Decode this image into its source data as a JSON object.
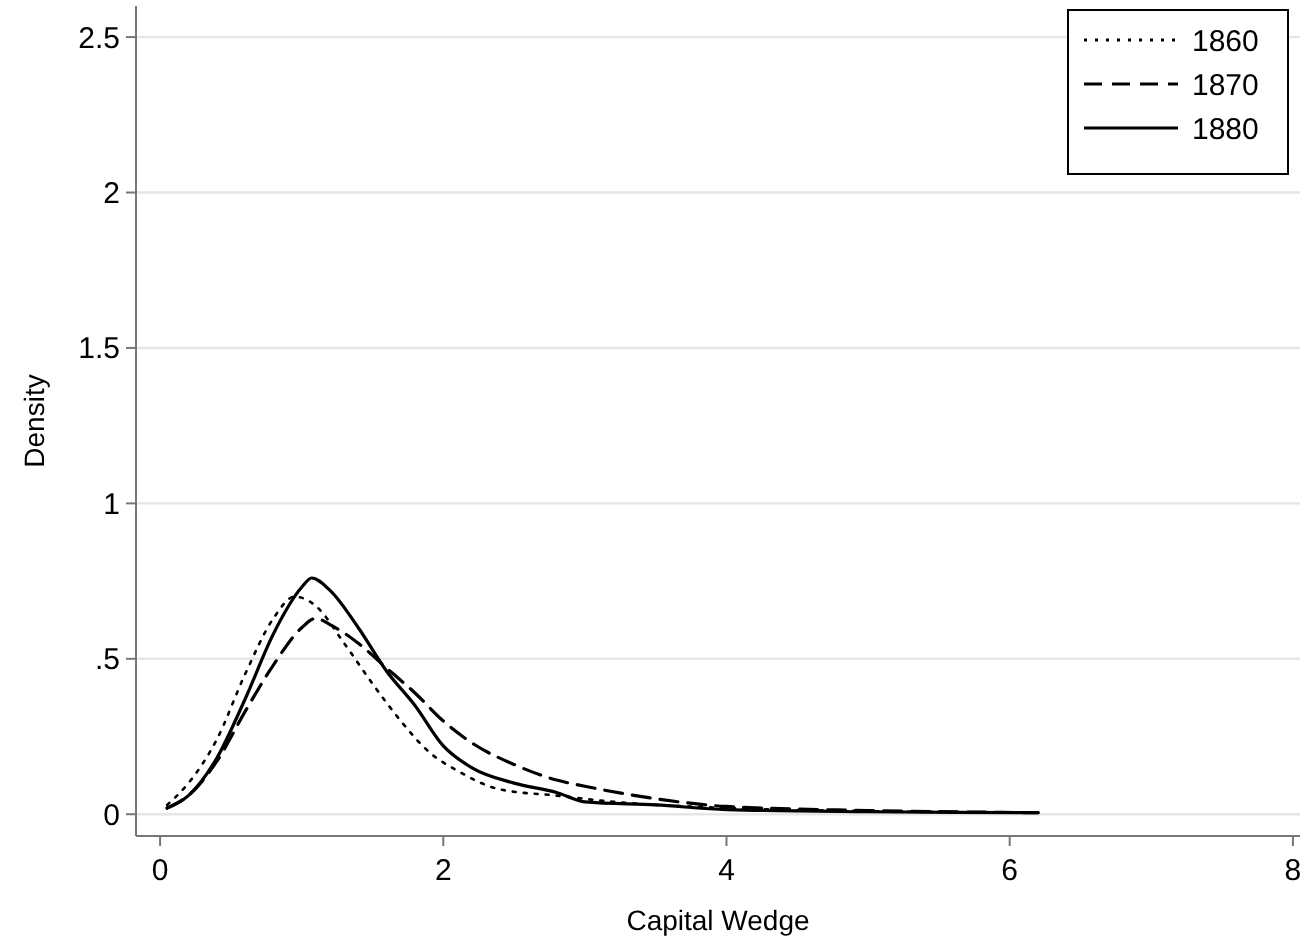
{
  "chart_data": {
    "type": "line",
    "xlabel": "Capital Wedge",
    "ylabel": "Density",
    "xlim": [
      -0.17,
      8.05
    ],
    "ylim": [
      -0.07,
      2.6
    ],
    "xticks": [
      0,
      2,
      4,
      6,
      8
    ],
    "yticks": [
      0,
      {
        "value": 0.5,
        "label": ".5"
      },
      1,
      1.5,
      2,
      2.5
    ],
    "grid": "y",
    "legend": "top right",
    "series": [
      {
        "name": "1860",
        "color": "#000000",
        "line_style": "dotted",
        "x": [
          0.05,
          0.2,
          0.4,
          0.6,
          0.8,
          0.95,
          1.1,
          1.3,
          1.5,
          1.7,
          1.9,
          2.1,
          2.4,
          2.8,
          3.2,
          4,
          5,
          6.2
        ],
        "values": [
          0.03,
          0.1,
          0.24,
          0.45,
          0.63,
          0.7,
          0.67,
          0.55,
          0.42,
          0.3,
          0.2,
          0.14,
          0.08,
          0.06,
          0.04,
          0.02,
          0.01,
          0.005
        ]
      },
      {
        "name": "1870",
        "color": "#000000",
        "line_style": "dashed",
        "x": [
          0.05,
          0.2,
          0.4,
          0.6,
          0.8,
          1.0,
          1.1,
          1.2,
          1.4,
          1.6,
          1.8,
          2.0,
          2.2,
          2.5,
          2.8,
          3.0,
          3.5,
          4,
          5,
          6.2
        ],
        "values": [
          0.02,
          0.06,
          0.17,
          0.33,
          0.48,
          0.6,
          0.63,
          0.61,
          0.55,
          0.47,
          0.39,
          0.3,
          0.23,
          0.16,
          0.11,
          0.09,
          0.05,
          0.025,
          0.012,
          0.005
        ]
      },
      {
        "name": "1880",
        "color": "#000000",
        "line_style": "solid",
        "x": [
          0.05,
          0.2,
          0.4,
          0.6,
          0.8,
          1.0,
          1.07,
          1.2,
          1.4,
          1.6,
          1.8,
          2.0,
          2.2,
          2.5,
          2.8,
          3.0,
          3.5,
          4,
          5,
          6.2
        ],
        "values": [
          0.02,
          0.06,
          0.18,
          0.37,
          0.58,
          0.73,
          0.76,
          0.72,
          0.6,
          0.46,
          0.35,
          0.22,
          0.15,
          0.1,
          0.07,
          0.04,
          0.03,
          0.015,
          0.008,
          0.005
        ]
      }
    ]
  }
}
